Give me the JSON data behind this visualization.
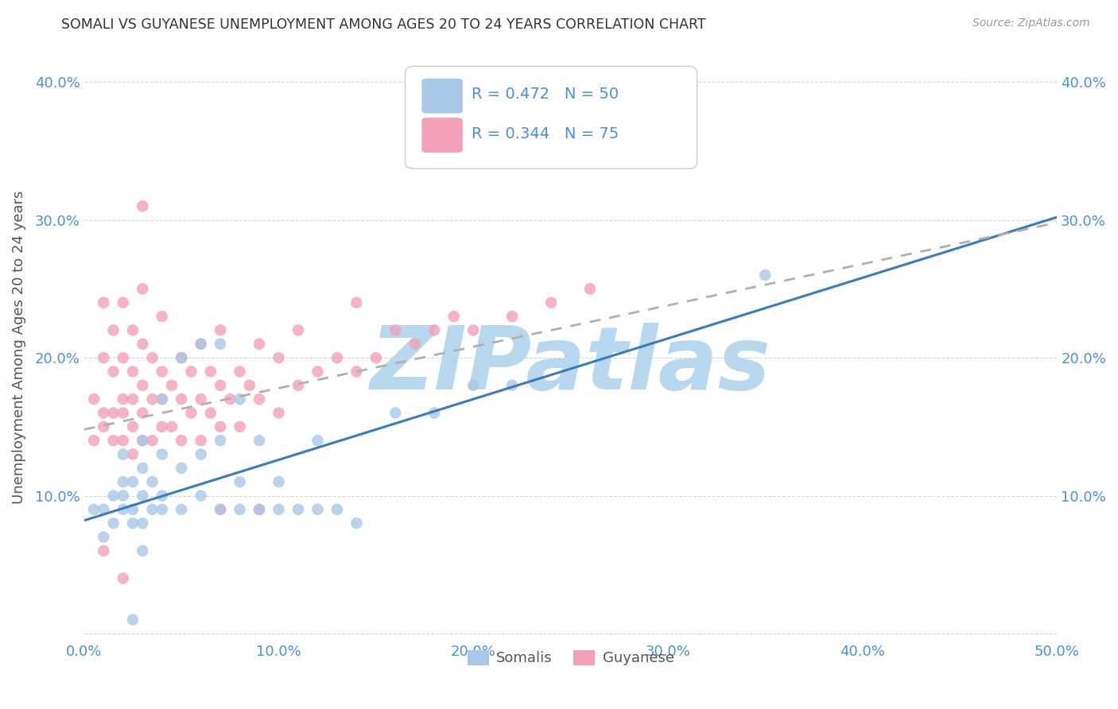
{
  "title": "SOMALI VS GUYANESE UNEMPLOYMENT AMONG AGES 20 TO 24 YEARS CORRELATION CHART",
  "source": "Source: ZipAtlas.com",
  "ylabel": "Unemployment Among Ages 20 to 24 years",
  "xlim": [
    0.0,
    0.5
  ],
  "ylim": [
    -0.005,
    0.42
  ],
  "xticks": [
    0.0,
    0.1,
    0.2,
    0.3,
    0.4,
    0.5
  ],
  "yticks": [
    0.0,
    0.1,
    0.2,
    0.3,
    0.4
  ],
  "xticklabels": [
    "0.0%",
    "10.0%",
    "20.0%",
    "30.0%",
    "40.0%",
    "50.0%"
  ],
  "yticklabels_left": [
    "",
    "10.0%",
    "20.0%",
    "30.0%",
    "40.0%"
  ],
  "yticklabels_right": [
    "",
    "10.0%",
    "20.0%",
    "30.0%",
    "40.0%"
  ],
  "somali_R": 0.472,
  "somali_N": 50,
  "guyanese_R": 0.344,
  "guyanese_N": 75,
  "somali_color": "#a8c8e8",
  "guyanese_color": "#f4a0b8",
  "somali_line_color": "#3a7abf",
  "guyanese_line_color": "#d45870",
  "watermark_color": "#b8d8f0",
  "watermark_text": "ZIPatlas",
  "somali_line_intercept": 0.082,
  "somali_line_slope": 0.44,
  "guyanese_line_intercept": 0.148,
  "guyanese_line_slope": 0.3,
  "somali_x": [
    0.005,
    0.01,
    0.01,
    0.015,
    0.015,
    0.02,
    0.02,
    0.02,
    0.02,
    0.025,
    0.025,
    0.025,
    0.03,
    0.03,
    0.03,
    0.03,
    0.035,
    0.035,
    0.04,
    0.04,
    0.04,
    0.04,
    0.05,
    0.05,
    0.05,
    0.06,
    0.06,
    0.06,
    0.07,
    0.07,
    0.07,
    0.08,
    0.08,
    0.08,
    0.09,
    0.09,
    0.1,
    0.1,
    0.11,
    0.12,
    0.12,
    0.13,
    0.14,
    0.16,
    0.18,
    0.2,
    0.22,
    0.35,
    0.025,
    0.03
  ],
  "somali_y": [
    0.09,
    0.07,
    0.09,
    0.08,
    0.1,
    0.09,
    0.1,
    0.11,
    0.13,
    0.08,
    0.09,
    0.11,
    0.08,
    0.1,
    0.12,
    0.14,
    0.09,
    0.11,
    0.09,
    0.1,
    0.13,
    0.17,
    0.09,
    0.12,
    0.2,
    0.1,
    0.13,
    0.21,
    0.09,
    0.14,
    0.21,
    0.09,
    0.11,
    0.17,
    0.09,
    0.14,
    0.09,
    0.11,
    0.09,
    0.09,
    0.14,
    0.09,
    0.08,
    0.16,
    0.16,
    0.18,
    0.18,
    0.26,
    0.01,
    0.06
  ],
  "guyanese_x": [
    0.005,
    0.005,
    0.01,
    0.01,
    0.01,
    0.01,
    0.015,
    0.015,
    0.015,
    0.015,
    0.02,
    0.02,
    0.02,
    0.02,
    0.02,
    0.025,
    0.025,
    0.025,
    0.025,
    0.025,
    0.03,
    0.03,
    0.03,
    0.03,
    0.03,
    0.035,
    0.035,
    0.035,
    0.04,
    0.04,
    0.04,
    0.04,
    0.045,
    0.045,
    0.05,
    0.05,
    0.05,
    0.055,
    0.055,
    0.06,
    0.06,
    0.06,
    0.065,
    0.065,
    0.07,
    0.07,
    0.07,
    0.075,
    0.08,
    0.08,
    0.085,
    0.09,
    0.09,
    0.1,
    0.1,
    0.11,
    0.11,
    0.12,
    0.13,
    0.14,
    0.14,
    0.15,
    0.16,
    0.17,
    0.18,
    0.19,
    0.2,
    0.22,
    0.24,
    0.26,
    0.01,
    0.02,
    0.07,
    0.09,
    0.03
  ],
  "guyanese_y": [
    0.14,
    0.17,
    0.15,
    0.16,
    0.2,
    0.24,
    0.14,
    0.16,
    0.19,
    0.22,
    0.14,
    0.16,
    0.17,
    0.2,
    0.24,
    0.13,
    0.15,
    0.17,
    0.19,
    0.22,
    0.14,
    0.16,
    0.18,
    0.21,
    0.25,
    0.14,
    0.17,
    0.2,
    0.15,
    0.17,
    0.19,
    0.23,
    0.15,
    0.18,
    0.14,
    0.17,
    0.2,
    0.16,
    0.19,
    0.14,
    0.17,
    0.21,
    0.16,
    0.19,
    0.15,
    0.18,
    0.22,
    0.17,
    0.15,
    0.19,
    0.18,
    0.17,
    0.21,
    0.16,
    0.2,
    0.18,
    0.22,
    0.19,
    0.2,
    0.19,
    0.24,
    0.2,
    0.22,
    0.21,
    0.22,
    0.23,
    0.22,
    0.23,
    0.24,
    0.25,
    0.06,
    0.04,
    0.09,
    0.09,
    0.31
  ]
}
